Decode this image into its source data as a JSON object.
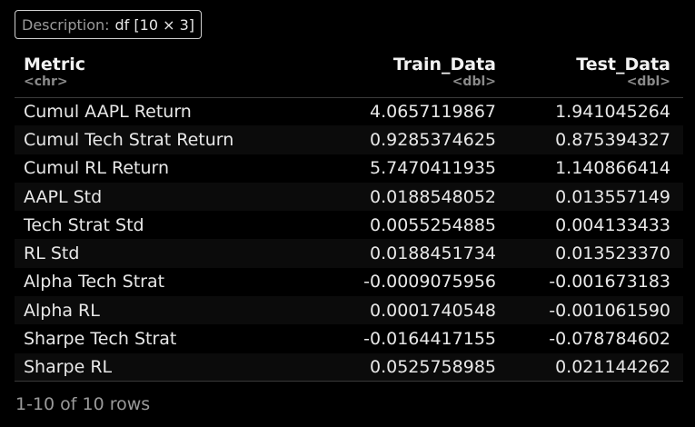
{
  "description": {
    "key": "Description:",
    "value": "df [10 × 3]"
  },
  "columns": [
    {
      "name": "Metric",
      "type": "<chr>"
    },
    {
      "name": "Train_Data",
      "type": "<dbl>"
    },
    {
      "name": "Test_Data",
      "type": "<dbl>"
    }
  ],
  "rows": [
    [
      "Cumul AAPL Return",
      "4.0657119867",
      "1.941045264"
    ],
    [
      "Cumul Tech Strat Return",
      "0.9285374625",
      "0.875394327"
    ],
    [
      "Cumul RL Return",
      "5.7470411935",
      "1.140866414"
    ],
    [
      "AAPL Std",
      "0.0188548052",
      "0.013557149"
    ],
    [
      "Tech Strat Std",
      "0.0055254885",
      "0.004133433"
    ],
    [
      "RL Std",
      "0.0188451734",
      "0.013523370"
    ],
    [
      "Alpha Tech Strat",
      "-0.0009075956",
      "-0.001673183"
    ],
    [
      "Alpha RL",
      "0.0001740548",
      "-0.001061590"
    ],
    [
      "Sharpe Tech Strat",
      "-0.0164417155",
      "-0.078784602"
    ],
    [
      "Sharpe RL",
      "0.0525758985",
      "0.021144262"
    ]
  ],
  "footer": "1-10 of 10 rows"
}
